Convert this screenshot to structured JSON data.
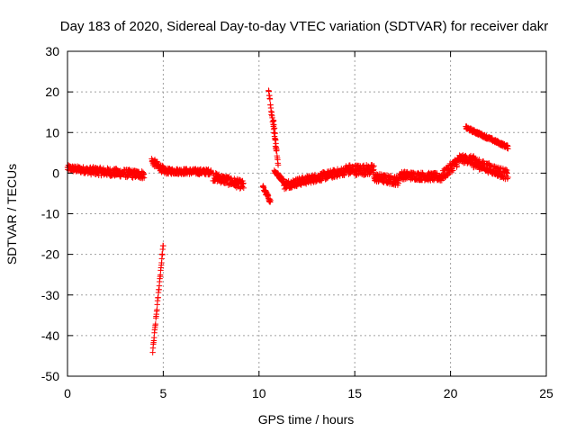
{
  "chart_data": {
    "type": "scatter",
    "title": "Day 183 of 2020, Sidereal Day-to-day VTEC variation (SDTVAR) for receiver dakr",
    "xlabel": "GPS time / hours",
    "ylabel": "SDTVAR / TECUs",
    "xlim": [
      0,
      25
    ],
    "ylim": [
      -50,
      30
    ],
    "xticks": [
      0,
      5,
      10,
      15,
      20,
      25
    ],
    "yticks": [
      30,
      20,
      10,
      0,
      -10,
      -20,
      -30,
      -40,
      -50
    ],
    "grid": true,
    "marker": "+",
    "series_color": "#ff0000",
    "series": [
      {
        "name": "SDTVAR",
        "segments": [
          {
            "x0": 0.0,
            "x1": 1.2,
            "y0": 1.2,
            "y1": 0.6,
            "spread": 1.6
          },
          {
            "x0": 1.2,
            "x1": 4.0,
            "y0": 0.6,
            "y1": -0.4,
            "spread": 2.0
          },
          {
            "x0": 4.4,
            "x1": 5.0,
            "y0": 3.0,
            "y1": 0.8,
            "spread": 1.8
          },
          {
            "x0": 5.0,
            "x1": 7.5,
            "y0": 0.5,
            "y1": 0.3,
            "spread": 1.4
          },
          {
            "x0": 7.6,
            "x1": 9.2,
            "y0": -0.8,
            "y1": -3.0,
            "spread": 2.2
          },
          {
            "x0": 4.45,
            "x1": 5.0,
            "y0": -44,
            "y1": -17.5,
            "spread": 1.0
          },
          {
            "x0": 10.2,
            "x1": 10.6,
            "y0": -3.5,
            "y1": -7,
            "spread": 1.2
          },
          {
            "x0": 10.5,
            "x1": 10.9,
            "y0": 20.5,
            "y1": 5.5,
            "spread": 1.2
          },
          {
            "x0": 10.75,
            "x1": 11.0,
            "y0": 13.5,
            "y1": 2.0,
            "spread": 1.0
          },
          {
            "x0": 10.8,
            "x1": 11.3,
            "y0": 0.5,
            "y1": -2.0,
            "spread": 1.0
          },
          {
            "x0": 11.3,
            "x1": 14.5,
            "y0": -3.0,
            "y1": 0.5,
            "spread": 2.0
          },
          {
            "x0": 14.5,
            "x1": 16.0,
            "y0": 0.8,
            "y1": 0.8,
            "spread": 2.6
          },
          {
            "x0": 16.0,
            "x1": 17.3,
            "y0": -1.0,
            "y1": -2.0,
            "spread": 2.2
          },
          {
            "x0": 17.3,
            "x1": 19.5,
            "y0": -0.5,
            "y1": -1.0,
            "spread": 2.0
          },
          {
            "x0": 19.5,
            "x1": 20.5,
            "y0": -1.0,
            "y1": 3.5,
            "spread": 2.5
          },
          {
            "x0": 20.5,
            "x1": 21.3,
            "y0": 3.5,
            "y1": 3.2,
            "spread": 2.0
          },
          {
            "x0": 21.0,
            "x1": 23.0,
            "y0": 3.0,
            "y1": -0.5,
            "spread": 2.5
          },
          {
            "x0": 20.8,
            "x1": 23.0,
            "y0": 11.2,
            "y1": 6.4,
            "spread": 0.8
          }
        ]
      }
    ]
  }
}
